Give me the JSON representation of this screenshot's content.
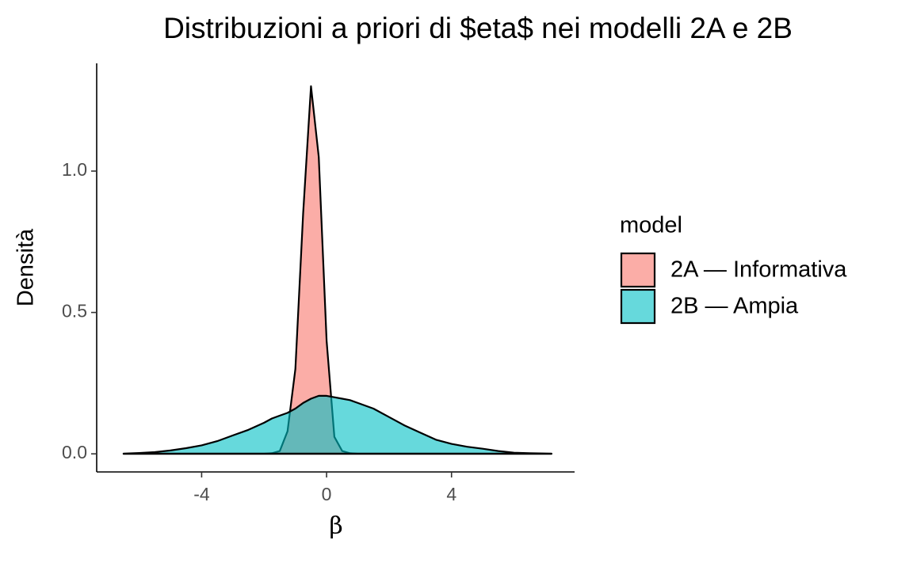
{
  "chart_data": {
    "type": "density",
    "title": "Distribuzioni a priori di $eta$ nei modelli 2A e 2B",
    "x_label": "β",
    "y_label": "Densità",
    "legend_title": "model",
    "x": [
      -6.5,
      -6,
      -5.5,
      -5,
      -4.5,
      -4,
      -3.5,
      -3,
      -2.5,
      -2,
      -1.75,
      -1.5,
      -1.25,
      -1,
      -0.75,
      -0.5,
      -0.25,
      0,
      0.25,
      0.5,
      0.75,
      1,
      1.5,
      2,
      2.5,
      3,
      3.5,
      4,
      4.5,
      5,
      5.5,
      6,
      6.5,
      7.2
    ],
    "series": [
      {
        "name": "2A — Informativa",
        "color": "#f8766d",
        "values": [
          0,
          0,
          0,
          0,
          0,
          0,
          0,
          0,
          0,
          0,
          0.002,
          0.01,
          0.08,
          0.3,
          0.85,
          1.3,
          1.05,
          0.4,
          0.06,
          0.01,
          0.002,
          0,
          0,
          0,
          0,
          0,
          0,
          0,
          0,
          0,
          0,
          0,
          0,
          0
        ]
      },
      {
        "name": "2B — Ampia",
        "color": "#00bfc4",
        "values": [
          0.001,
          0.003,
          0.006,
          0.012,
          0.02,
          0.03,
          0.045,
          0.065,
          0.085,
          0.11,
          0.125,
          0.135,
          0.145,
          0.16,
          0.18,
          0.195,
          0.205,
          0.205,
          0.2,
          0.195,
          0.19,
          0.18,
          0.16,
          0.13,
          0.1,
          0.075,
          0.05,
          0.035,
          0.025,
          0.018,
          0.01,
          0.004,
          0.002,
          0.001
        ]
      }
    ],
    "xlim": [
      -7.36,
      7.94
    ],
    "ylim": [
      -0.064,
      1.381
    ],
    "xticks": [
      -4,
      0,
      4
    ],
    "yticks": [
      {
        "value": 0,
        "label": "0.0"
      },
      0.5,
      {
        "value": 1,
        "label": "1.0"
      }
    ],
    "legend": "right"
  }
}
